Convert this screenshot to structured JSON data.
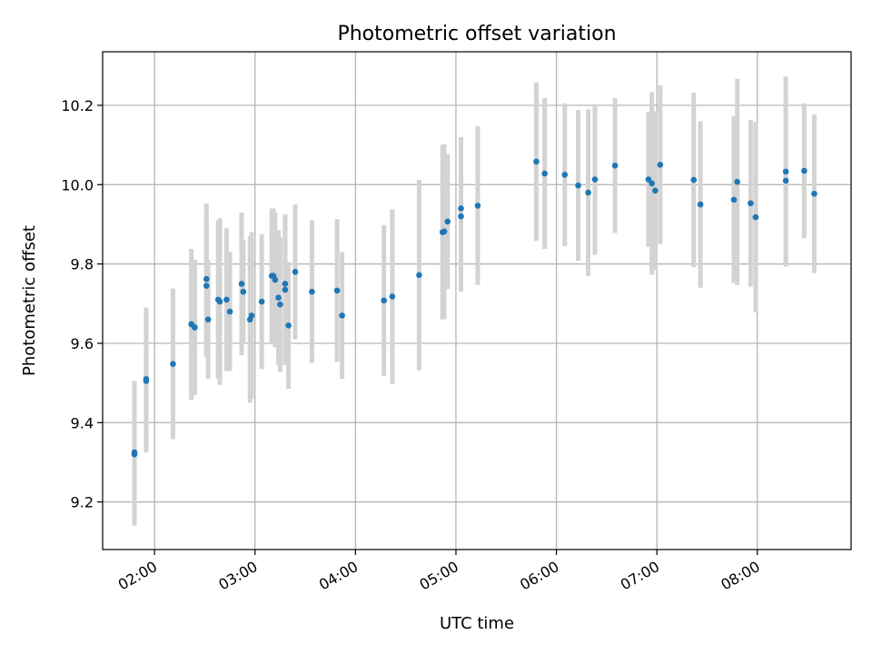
{
  "chart_data": {
    "type": "scatter",
    "title": "Photometric offset variation",
    "xlabel": "UTC time",
    "ylabel": "Photometric offset",
    "x_tick_labels": [
      "02:00",
      "03:00",
      "04:00",
      "05:00",
      "06:00",
      "07:00",
      "08:00"
    ],
    "y_tick_labels": [
      "9.2",
      "9.4",
      "9.6",
      "9.8",
      "10.0",
      "10.2"
    ],
    "y_ticks": [
      9.2,
      9.4,
      9.6,
      9.8,
      10.0,
      10.2
    ],
    "xlim": [
      "01:29",
      "08:56"
    ],
    "ylim": [
      9.08,
      10.335
    ],
    "grid": true,
    "colors": {
      "points": "#1f77b4",
      "errorbars": "#d3d3d3",
      "grid": "#b0b0b0"
    },
    "series": [
      {
        "x": [
          "01:48",
          "01:48",
          "01:55",
          "01:55",
          "02:11",
          "02:22",
          "02:22",
          "02:24",
          "02:24",
          "02:31",
          "02:31",
          "02:32",
          "02:38",
          "02:39",
          "02:43",
          "02:45",
          "02:52",
          "02:53",
          "02:57",
          "02:58",
          "03:04",
          "03:10",
          "03:11",
          "03:12",
          "03:14",
          "03:15",
          "03:18",
          "03:18",
          "03:20",
          "03:24",
          "03:34",
          "03:49",
          "03:52",
          "04:17",
          "04:22",
          "04:38",
          "04:52",
          "04:53",
          "04:55",
          "05:03",
          "05:03",
          "05:13",
          "05:48",
          "05:53",
          "06:05",
          "06:13",
          "06:19",
          "06:23",
          "06:35",
          "06:55",
          "06:57",
          "06:59",
          "07:02",
          "07:22",
          "07:26",
          "07:46",
          "07:48",
          "07:56",
          "07:59",
          "08:17",
          "08:17",
          "08:28",
          "08:34"
        ],
        "y": [
          9.32,
          9.325,
          9.505,
          9.51,
          9.548,
          9.648,
          9.648,
          9.64,
          9.64,
          9.762,
          9.745,
          9.66,
          9.71,
          9.705,
          9.71,
          9.68,
          9.75,
          9.73,
          9.66,
          9.67,
          9.705,
          9.77,
          9.77,
          9.76,
          9.715,
          9.698,
          9.735,
          9.75,
          9.645,
          9.78,
          9.73,
          9.733,
          9.67,
          9.708,
          9.718,
          9.772,
          9.88,
          9.882,
          9.907,
          9.94,
          9.92,
          9.947,
          10.058,
          10.028,
          10.025,
          9.998,
          9.98,
          10.013,
          10.048,
          10.013,
          10.003,
          9.985,
          10.05,
          10.012,
          9.95,
          9.962,
          10.007,
          9.953,
          9.918,
          10.01,
          10.033,
          10.035,
          9.977
        ],
        "err": [
          0.18,
          0.18,
          0.18,
          0.18,
          0.19,
          0.19,
          0.17,
          0.17,
          0.17,
          0.19,
          0.18,
          0.15,
          0.2,
          0.21,
          0.18,
          0.15,
          0.18,
          0.13,
          0.21,
          0.21,
          0.17,
          0.17,
          0.17,
          0.17,
          0.17,
          0.17,
          0.19,
          0.17,
          0.16,
          0.17,
          0.18,
          0.18,
          0.16,
          0.19,
          0.22,
          0.24,
          0.22,
          0.22,
          0.17,
          0.18,
          0.19,
          0.2,
          0.2,
          0.19,
          0.18,
          0.19,
          0.21,
          0.19,
          0.17,
          0.17,
          0.23,
          0.2,
          0.2,
          0.22,
          0.21,
          0.21,
          0.26,
          0.21,
          0.24,
          0.21,
          0.24,
          0.17,
          0.2
        ]
      }
    ]
  }
}
